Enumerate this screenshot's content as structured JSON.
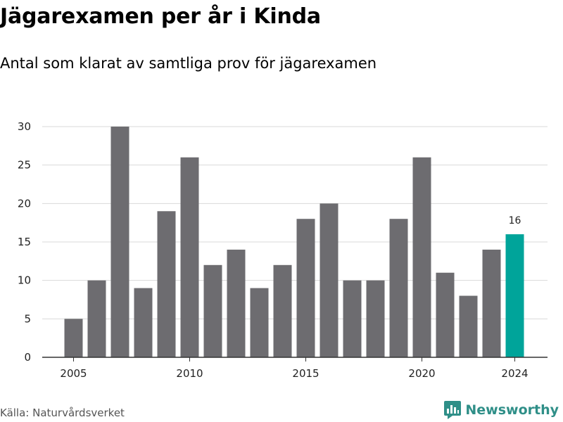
{
  "title": "Jägarexamen per år i Kinda",
  "subtitle": "Antal som klarat av samtliga prov för jägarexamen",
  "source": "Källa: Naturvårdsverket",
  "brand": {
    "name": "Newsworthy",
    "color": "#2f8f88",
    "icon": "newsworthy-logo-icon"
  },
  "colors": {
    "bar": "#6d6c70",
    "highlight": "#00a49a",
    "grid": "#d9d9d9",
    "axis": "#333333"
  },
  "chart_data": {
    "type": "bar",
    "x": [
      2005,
      2006,
      2007,
      2008,
      2009,
      2010,
      2011,
      2012,
      2013,
      2014,
      2015,
      2016,
      2017,
      2018,
      2019,
      2020,
      2021,
      2022,
      2023,
      2024
    ],
    "values": [
      5,
      10,
      30,
      9,
      19,
      26,
      12,
      14,
      9,
      12,
      18,
      20,
      10,
      10,
      18,
      26,
      11,
      8,
      14,
      16
    ],
    "highlight_index": 19,
    "highlight_label": "16",
    "xticks": [
      "2005",
      "2010",
      "2015",
      "2020",
      "2024"
    ],
    "yticks": [
      "0",
      "5",
      "10",
      "15",
      "20",
      "25",
      "30"
    ],
    "ylim": [
      0,
      30
    ],
    "grid": true
  }
}
